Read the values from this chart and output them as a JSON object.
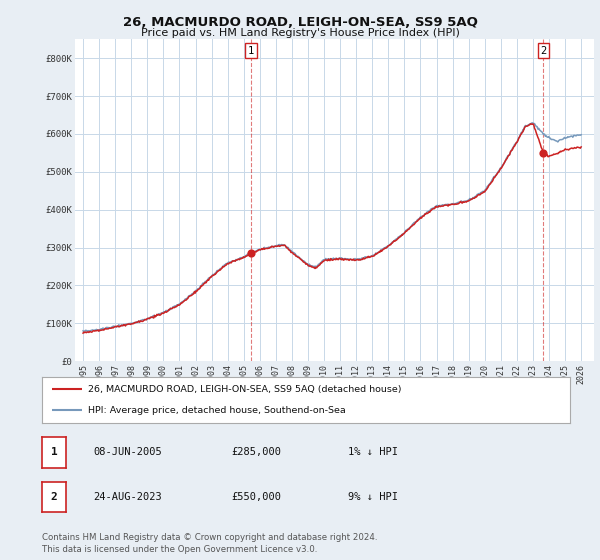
{
  "title": "26, MACMURDO ROAD, LEIGH-ON-SEA, SS9 5AQ",
  "subtitle": "Price paid vs. HM Land Registry's House Price Index (HPI)",
  "ylabel_ticks": [
    "£0",
    "£100K",
    "£200K",
    "£300K",
    "£400K",
    "£500K",
    "£600K",
    "£700K",
    "£800K"
  ],
  "ytick_values": [
    0,
    100000,
    200000,
    300000,
    400000,
    500000,
    600000,
    700000,
    800000
  ],
  "ylim": [
    0,
    850000
  ],
  "xlim_start": 1994.5,
  "xlim_end": 2026.8,
  "hpi_color": "#7799bb",
  "price_color": "#cc2222",
  "marker_color": "#cc2222",
  "transaction1": {
    "date": 2005.44,
    "price": 285000,
    "label": "1"
  },
  "transaction2": {
    "date": 2023.65,
    "price": 550000,
    "label": "2"
  },
  "legend_line1": "26, MACMURDO ROAD, LEIGH-ON-SEA, SS9 5AQ (detached house)",
  "legend_line2": "HPI: Average price, detached house, Southend-on-Sea",
  "table_row1": [
    "1",
    "08-JUN-2005",
    "£285,000",
    "1% ↓ HPI"
  ],
  "table_row2": [
    "2",
    "24-AUG-2023",
    "£550,000",
    "9% ↓ HPI"
  ],
  "footnote": "Contains HM Land Registry data © Crown copyright and database right 2024.\nThis data is licensed under the Open Government Licence v3.0.",
  "background_color": "#e8eef4",
  "plot_bg_color": "#ffffff",
  "grid_color": "#c8d8e8",
  "hpi_waypoints": [
    [
      1995.0,
      78000
    ],
    [
      1996.0,
      83000
    ],
    [
      1997.0,
      92000
    ],
    [
      1998.0,
      100000
    ],
    [
      1999.0,
      112000
    ],
    [
      2000.0,
      128000
    ],
    [
      2001.0,
      150000
    ],
    [
      2002.0,
      185000
    ],
    [
      2003.0,
      225000
    ],
    [
      2004.0,
      260000
    ],
    [
      2005.0,
      275000
    ],
    [
      2005.44,
      285000
    ],
    [
      2006.0,
      295000
    ],
    [
      2007.0,
      305000
    ],
    [
      2007.5,
      308000
    ],
    [
      2008.0,
      290000
    ],
    [
      2009.0,
      255000
    ],
    [
      2009.5,
      248000
    ],
    [
      2010.0,
      268000
    ],
    [
      2011.0,
      272000
    ],
    [
      2012.0,
      268000
    ],
    [
      2013.0,
      278000
    ],
    [
      2014.0,
      305000
    ],
    [
      2015.0,
      340000
    ],
    [
      2016.0,
      380000
    ],
    [
      2017.0,
      410000
    ],
    [
      2018.0,
      415000
    ],
    [
      2019.0,
      425000
    ],
    [
      2020.0,
      450000
    ],
    [
      2021.0,
      510000
    ],
    [
      2022.0,
      580000
    ],
    [
      2022.5,
      620000
    ],
    [
      2023.0,
      630000
    ],
    [
      2023.65,
      600000
    ],
    [
      2024.0,
      590000
    ],
    [
      2024.5,
      580000
    ],
    [
      2025.0,
      590000
    ],
    [
      2025.5,
      595000
    ],
    [
      2026.0,
      598000
    ]
  ],
  "price_waypoints": [
    [
      1995.0,
      76000
    ],
    [
      1996.0,
      81000
    ],
    [
      1997.0,
      90000
    ],
    [
      1998.0,
      99000
    ],
    [
      1999.0,
      111000
    ],
    [
      2000.0,
      127000
    ],
    [
      2001.0,
      149000
    ],
    [
      2002.0,
      183000
    ],
    [
      2003.0,
      223000
    ],
    [
      2004.0,
      258000
    ],
    [
      2005.0,
      274000
    ],
    [
      2005.44,
      285000
    ],
    [
      2006.0,
      294000
    ],
    [
      2007.0,
      303000
    ],
    [
      2007.5,
      306000
    ],
    [
      2008.0,
      288000
    ],
    [
      2009.0,
      253000
    ],
    [
      2009.5,
      246000
    ],
    [
      2010.0,
      266000
    ],
    [
      2011.0,
      270000
    ],
    [
      2012.0,
      266000
    ],
    [
      2013.0,
      276000
    ],
    [
      2014.0,
      303000
    ],
    [
      2015.0,
      338000
    ],
    [
      2016.0,
      378000
    ],
    [
      2017.0,
      408000
    ],
    [
      2018.0,
      413000
    ],
    [
      2019.0,
      423000
    ],
    [
      2020.0,
      448000
    ],
    [
      2021.0,
      508000
    ],
    [
      2022.0,
      578000
    ],
    [
      2022.5,
      618000
    ],
    [
      2023.0,
      628000
    ],
    [
      2023.65,
      550000
    ],
    [
      2024.0,
      540000
    ],
    [
      2024.5,
      548000
    ],
    [
      2025.0,
      558000
    ],
    [
      2025.5,
      562000
    ],
    [
      2026.0,
      565000
    ]
  ]
}
